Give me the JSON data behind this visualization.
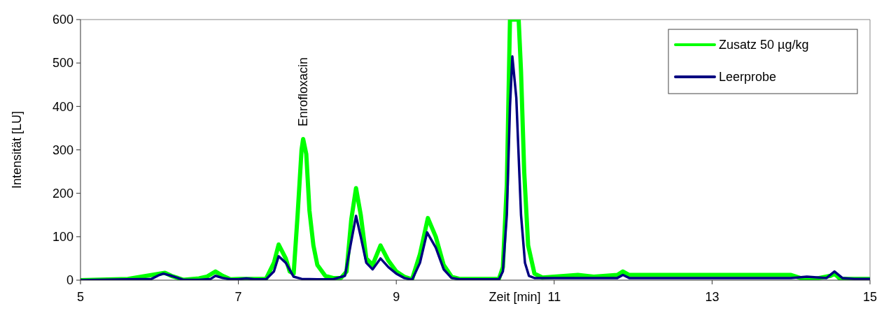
{
  "chart_data": {
    "type": "line",
    "xlabel": "Zeit [min]",
    "ylabel": "Intensität [LU]",
    "xlim": [
      5,
      15
    ],
    "ylim": [
      0,
      600
    ],
    "xticks": [
      5,
      7,
      9,
      11,
      13,
      15
    ],
    "yticks": [
      0,
      100,
      200,
      300,
      400,
      500,
      600
    ],
    "grid": false,
    "legend": "top right",
    "marker": "none",
    "line_style": "solid",
    "annotations": [
      {
        "text": "Enrofloxacin",
        "x": 7.82,
        "y": 325
      }
    ],
    "series": [
      {
        "name": "Zusatz 50 µg/kg",
        "color": "#00ff00",
        "x": [
          5,
          5.6,
          6.0,
          6.07,
          6.15,
          6.3,
          6.5,
          6.6,
          6.71,
          6.8,
          6.9,
          7.0,
          7.35,
          7.45,
          7.51,
          7.6,
          7.65,
          7.7,
          7.75,
          7.8,
          7.82,
          7.86,
          7.9,
          7.95,
          8.0,
          8.1,
          8.2,
          8.3,
          8.37,
          8.43,
          8.49,
          8.55,
          8.62,
          8.7,
          8.8,
          8.9,
          9.0,
          9.1,
          9.2,
          9.3,
          9.4,
          9.5,
          9.6,
          9.7,
          9.8,
          10.3,
          10.35,
          10.4,
          10.44,
          10.55,
          10.58,
          10.62,
          10.67,
          10.75,
          10.85,
          11,
          11.3,
          11.5,
          11.8,
          11.87,
          11.95,
          12.5,
          13,
          14.0,
          14.15,
          14.3,
          14.5,
          14.55,
          14.62,
          15
        ],
        "values": [
          0,
          3,
          15,
          17,
          10,
          1,
          4,
          8,
          20,
          10,
          2,
          3,
          3,
          40,
          82,
          50,
          20,
          15,
          150,
          300,
          325,
          290,
          160,
          80,
          35,
          10,
          5,
          5,
          20,
          140,
          212,
          150,
          50,
          35,
          80,
          45,
          20,
          8,
          2,
          60,
          143,
          100,
          35,
          8,
          3,
          3,
          30,
          220,
          600,
          600,
          480,
          250,
          80,
          15,
          6,
          8,
          12,
          8,
          12,
          20,
          12,
          12,
          12,
          12,
          3,
          3,
          10,
          15,
          3,
          3
        ]
      },
      {
        "name": "Leerprobe",
        "color": "#000080",
        "x": [
          5,
          5.6,
          5.9,
          6.0,
          6.05,
          6.15,
          6.3,
          6.5,
          6.65,
          6.71,
          6.8,
          6.9,
          7.0,
          7.1,
          7.2,
          7.35,
          7.45,
          7.51,
          7.6,
          7.7,
          7.8,
          8.0,
          8.2,
          8.35,
          8.42,
          8.49,
          8.55,
          8.62,
          8.7,
          8.8,
          8.9,
          9.0,
          9.1,
          9.2,
          9.3,
          9.39,
          9.5,
          9.6,
          9.7,
          9.8,
          10.0,
          10.3,
          10.35,
          10.4,
          10.44,
          10.47,
          10.52,
          10.58,
          10.63,
          10.68,
          10.75,
          10.85,
          11,
          11.5,
          11.8,
          11.87,
          11.95,
          12.5,
          13,
          14.0,
          14.2,
          14.45,
          14.55,
          14.65,
          14.8,
          15
        ],
        "values": [
          0,
          2,
          3,
          12,
          15,
          10,
          1,
          1,
          3,
          10,
          5,
          2,
          2,
          4,
          2,
          2,
          20,
          55,
          40,
          8,
          3,
          2,
          2,
          10,
          80,
          148,
          100,
          40,
          25,
          50,
          30,
          15,
          5,
          1,
          40,
          110,
          75,
          25,
          5,
          2,
          2,
          2,
          20,
          150,
          400,
          515,
          420,
          150,
          40,
          10,
          5,
          5,
          5,
          5,
          5,
          12,
          5,
          5,
          5,
          5,
          8,
          5,
          20,
          5,
          3,
          3
        ]
      }
    ]
  }
}
